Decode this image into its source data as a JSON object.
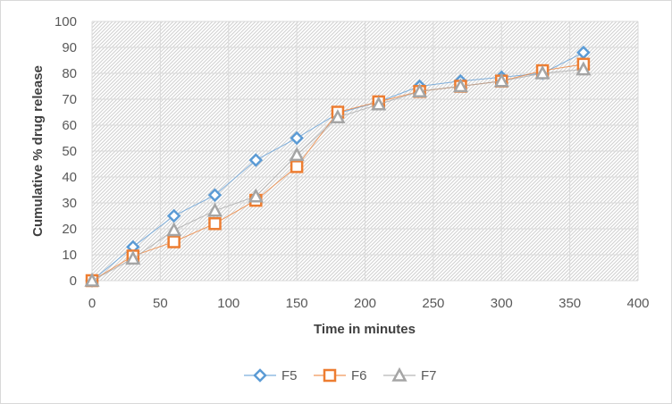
{
  "chart_data": {
    "type": "line",
    "title": "",
    "xlabel": "Time in minutes",
    "ylabel": "Cumulative % drug release",
    "xlim": [
      0,
      400
    ],
    "ylim": [
      0,
      100
    ],
    "x_ticks": [
      0,
      50,
      100,
      150,
      200,
      250,
      300,
      350,
      400
    ],
    "y_ticks": [
      0,
      10,
      20,
      30,
      40,
      50,
      60,
      70,
      80,
      90,
      100
    ],
    "grid": true,
    "plot_background": "hatched",
    "legend_position": "bottom",
    "x": [
      0,
      30,
      60,
      90,
      120,
      150,
      180,
      210,
      240,
      270,
      300,
      330,
      360
    ],
    "series": [
      {
        "name": "F5",
        "marker": "diamond",
        "color": "#5b9bd5",
        "values": [
          0,
          13,
          25,
          33,
          46.5,
          55,
          64.5,
          69,
          75,
          77,
          78.5,
          80,
          88
        ]
      },
      {
        "name": "F6",
        "marker": "square",
        "color": "#ed7d31",
        "values": [
          0,
          9.5,
          15,
          22,
          31,
          44,
          65,
          69,
          73,
          75,
          77,
          81,
          83.5
        ]
      },
      {
        "name": "F7",
        "marker": "triangle",
        "color": "#a5a5a5",
        "values": [
          0,
          8.5,
          19.5,
          27,
          32.5,
          48.5,
          63,
          68,
          73,
          75,
          77,
          80,
          81.5
        ]
      }
    ]
  }
}
